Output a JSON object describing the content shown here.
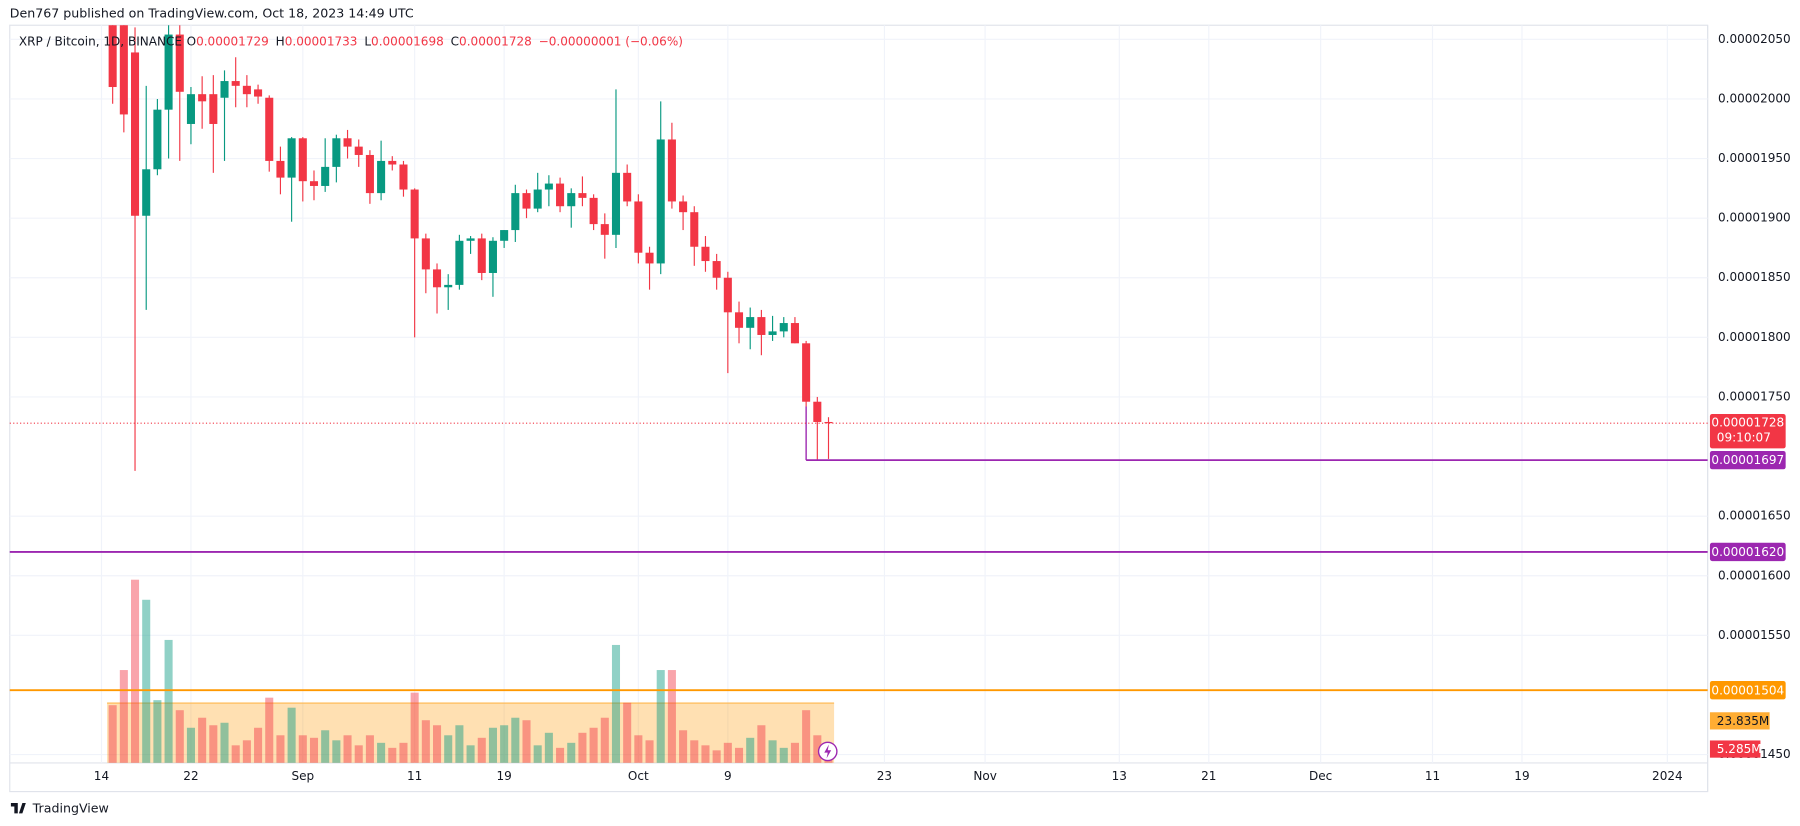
{
  "chart_data": {
    "type": "candlestick",
    "publisher": "Den767 published on TradingView.com, Oct 18, 2023 14:49 UTC",
    "symbol": "XRP / Bitcoin, 1D, BINANCE",
    "ohlc_legend": [
      {
        "key": "O",
        "label": "0.00001729"
      },
      {
        "key": "H",
        "label": "0.00001733"
      },
      {
        "key": "L",
        "label": "0.00001698"
      },
      {
        "key": "C",
        "label": "0.00001728"
      }
    ],
    "change_label": "−0.00000001 (−0.06%)",
    "footer": "TradingView",
    "up_color": "#089981",
    "down_color": "#f23645",
    "grid": true,
    "x": [
      0,
      1,
      2,
      3,
      4,
      5,
      6,
      7,
      8,
      9,
      10,
      11,
      12,
      13,
      14,
      15,
      16,
      17,
      18,
      19,
      20,
      21,
      22,
      23,
      24,
      25,
      26,
      27,
      28,
      29,
      30,
      31,
      32,
      33,
      34,
      35,
      36,
      37,
      38,
      39,
      40,
      41,
      42,
      43,
      44,
      45,
      46,
      47,
      48,
      49,
      50,
      51,
      52,
      53,
      54,
      55,
      56,
      57,
      58,
      59,
      60,
      61,
      62,
      63,
      64
    ],
    "open": [
      2.085e-05,
      2.08e-05,
      2.039e-05,
      1.902e-05,
      1.941e-05,
      1.991e-05,
      2.054e-05,
      1.979e-05,
      2.004e-05,
      2.004e-05,
      2.001e-05,
      2.015e-05,
      2.011e-05,
      2.008e-05,
      2.001e-05,
      1.948e-05,
      1.934e-05,
      1.967e-05,
      1.931e-05,
      1.927e-05,
      1.943e-05,
      1.967e-05,
      1.96e-05,
      1.953e-05,
      1.921e-05,
      1.948e-05,
      1.945e-05,
      1.924e-05,
      1.883e-05,
      1.857e-05,
      1.842e-05,
      1.844e-05,
      1.881e-05,
      1.883e-05,
      1.854e-05,
      1.881e-05,
      1.89e-05,
      1.921e-05,
      1.908e-05,
      1.924e-05,
      1.929e-05,
      1.91e-05,
      1.921e-05,
      1.917e-05,
      1.895e-05,
      1.886e-05,
      1.938e-05,
      1.914e-05,
      1.871e-05,
      1.862e-05,
      1.966e-05,
      1.914e-05,
      1.905e-05,
      1.876e-05,
      1.864e-05,
      1.85e-05,
      1.821e-05,
      1.808e-05,
      1.817e-05,
      1.802e-05,
      1.805e-05,
      1.812e-05,
      1.795e-05,
      1.746e-05,
      1.729e-05
    ],
    "high": [
      2.1e-05,
      2.095e-05,
      2.06e-05,
      2.011e-05,
      2e-05,
      2.062e-05,
      2.062e-05,
      2.01e-05,
      2.019e-05,
      2.02e-05,
      2.024e-05,
      2.035e-05,
      2.02e-05,
      2.012e-05,
      2.003e-05,
      1.96e-05,
      1.968e-05,
      1.968e-05,
      1.94e-05,
      1.967e-05,
      1.97e-05,
      1.974e-05,
      1.966e-05,
      1.957e-05,
      1.965e-05,
      1.952e-05,
      1.948e-05,
      1.925e-05,
      1.887e-05,
      1.862e-05,
      1.853e-05,
      1.886e-05,
      1.885e-05,
      1.887e-05,
      1.884e-05,
      1.89e-05,
      1.928e-05,
      1.924e-05,
      1.938e-05,
      1.936e-05,
      1.934e-05,
      1.925e-05,
      1.935e-05,
      1.92e-05,
      1.904e-05,
      2.008e-05,
      1.945e-05,
      1.92e-05,
      1.876e-05,
      1.998e-05,
      1.98e-05,
      1.919e-05,
      1.91e-05,
      1.885e-05,
      1.87e-05,
      1.855e-05,
      1.83e-05,
      1.825e-05,
      1.823e-05,
      1.818e-05,
      1.817e-05,
      1.817e-05,
      1.797e-05,
      1.75e-05,
      1.733e-05
    ],
    "low": [
      1.996e-05,
      1.972e-05,
      1.688e-05,
      1.823e-05,
      1.936e-05,
      1.95e-05,
      1.948e-05,
      1.962e-05,
      1.975e-05,
      1.938e-05,
      1.948e-05,
      1.993e-05,
      1.993e-05,
      1.996e-05,
      1.939e-05,
      1.92e-05,
      1.897e-05,
      1.914e-05,
      1.915e-05,
      1.922e-05,
      1.93e-05,
      1.95e-05,
      1.943e-05,
      1.912e-05,
      1.915e-05,
      1.94e-05,
      1.918e-05,
      1.8e-05,
      1.837e-05,
      1.82e-05,
      1.823e-05,
      1.84e-05,
      1.87e-05,
      1.848e-05,
      1.834e-05,
      1.875e-05,
      1.88e-05,
      1.9e-05,
      1.905e-05,
      1.91e-05,
      1.905e-05,
      1.892e-05,
      1.91e-05,
      1.89e-05,
      1.866e-05,
      1.875e-05,
      1.91e-05,
      1.862e-05,
      1.84e-05,
      1.853e-05,
      1.908e-05,
      1.89e-05,
      1.86e-05,
      1.855e-05,
      1.84e-05,
      1.77e-05,
      1.795e-05,
      1.79e-05,
      1.785e-05,
      1.797e-05,
      1.8e-05,
      1.795e-05,
      1.742e-05,
      1.697e-05,
      1.698e-05
    ],
    "close": [
      2.01e-05,
      1.987e-05,
      1.902e-05,
      1.941e-05,
      1.991e-05,
      2.054e-05,
      2.006e-05,
      2.004e-05,
      1.998e-05,
      1.979e-05,
      2.015e-05,
      2.011e-05,
      2.004e-05,
      2.002e-05,
      1.948e-05,
      1.934e-05,
      1.967e-05,
      1.931e-05,
      1.927e-05,
      1.943e-05,
      1.967e-05,
      1.96e-05,
      1.953e-05,
      1.921e-05,
      1.948e-05,
      1.945e-05,
      1.924e-05,
      1.883e-05,
      1.857e-05,
      1.842e-05,
      1.844e-05,
      1.881e-05,
      1.883e-05,
      1.854e-05,
      1.881e-05,
      1.89e-05,
      1.921e-05,
      1.908e-05,
      1.924e-05,
      1.929e-05,
      1.91e-05,
      1.921e-05,
      1.917e-05,
      1.895e-05,
      1.886e-05,
      1.938e-05,
      1.914e-05,
      1.871e-05,
      1.862e-05,
      1.966e-05,
      1.914e-05,
      1.905e-05,
      1.876e-05,
      1.864e-05,
      1.85e-05,
      1.821e-05,
      1.808e-05,
      1.817e-05,
      1.802e-05,
      1.805e-05,
      1.812e-05,
      1.795e-05,
      1.746e-05,
      1.729e-05,
      1.728e-05
    ],
    "volume": {
      "values": [
        23,
        37,
        73,
        65,
        25,
        49,
        21,
        14,
        18,
        15,
        16,
        7,
        9,
        14,
        26,
        11,
        22,
        11,
        10,
        13,
        9,
        11,
        7,
        11,
        8,
        6,
        8,
        28,
        17,
        15,
        11,
        15,
        7,
        10,
        14,
        15,
        18,
        17,
        7,
        12,
        6,
        8,
        12,
        14,
        18,
        47,
        24,
        11,
        9,
        37,
        37,
        13,
        9,
        7,
        5,
        8,
        6,
        10,
        15,
        9,
        6,
        8,
        21,
        11,
        5.285
      ],
      "value_labels": [
        null,
        null,
        null,
        null,
        null,
        null,
        null,
        null,
        null,
        null,
        null,
        null,
        null,
        null,
        null,
        null,
        null,
        null,
        null,
        null,
        null,
        null,
        null,
        null,
        null,
        null,
        null,
        null,
        null,
        null,
        null,
        null,
        null,
        null,
        null,
        null,
        null,
        null,
        null,
        null,
        null,
        null,
        null,
        null,
        null,
        null,
        null,
        null,
        null,
        null,
        null,
        null,
        null,
        null,
        null,
        null,
        null,
        null,
        null,
        null,
        null,
        null,
        null,
        null,
        "5.285M"
      ],
      "ylim": [
        0,
        80
      ],
      "ma": {
        "value": 23.835,
        "label": "23.835M"
      }
    },
    "xlim": [
      -9.2,
      142.6
    ],
    "xticks": [
      {
        "value": -1,
        "label": "14"
      },
      {
        "value": 7,
        "label": "22"
      },
      {
        "value": 17,
        "label": "Sep"
      },
      {
        "value": 27,
        "label": "11"
      },
      {
        "value": 35,
        "label": "19"
      },
      {
        "value": 47,
        "label": "Oct"
      },
      {
        "value": 55,
        "label": "9"
      },
      {
        "value": 69,
        "label": "23"
      },
      {
        "value": 78,
        "label": "Nov"
      },
      {
        "value": 90,
        "label": "13"
      },
      {
        "value": 98,
        "label": "21"
      },
      {
        "value": 108,
        "label": "Dec"
      },
      {
        "value": 118,
        "label": "11"
      },
      {
        "value": 126,
        "label": "19"
      },
      {
        "value": 139,
        "label": "2024"
      }
    ],
    "ylim": [
      1.443e-05,
      2.083e-05
    ],
    "yticks": [
      {
        "value": 2.05e-05,
        "label": "0.00002050"
      },
      {
        "value": 2e-05,
        "label": "0.00002000"
      },
      {
        "value": 1.95e-05,
        "label": "0.00001950"
      },
      {
        "value": 1.9e-05,
        "label": "0.00001900"
      },
      {
        "value": 1.85e-05,
        "label": "0.00001850"
      },
      {
        "value": 1.8e-05,
        "label": "0.00001800"
      },
      {
        "value": 1.75e-05,
        "label": "0.00001750"
      },
      {
        "value": 1.65e-05,
        "label": "0.00001650"
      },
      {
        "value": 1.6e-05,
        "label": "0.00001600"
      },
      {
        "value": 1.55e-05,
        "label": "0.00001550"
      },
      {
        "value": 1.45e-05,
        "label": "0.00001450"
      }
    ],
    "last_price": {
      "value": 1.728e-05,
      "label": "0.00001728",
      "countdown": "09:10:07"
    },
    "levels": [
      {
        "value": 1.697e-05,
        "label": "0.00001697",
        "color": "#9c27b0",
        "start_x": 62
      },
      {
        "value": 1.62e-05,
        "label": "0.00001620",
        "color": "#9c27b0"
      },
      {
        "value": 1.504e-05,
        "label": "0.00001504",
        "color": "#ff9800"
      }
    ]
  }
}
